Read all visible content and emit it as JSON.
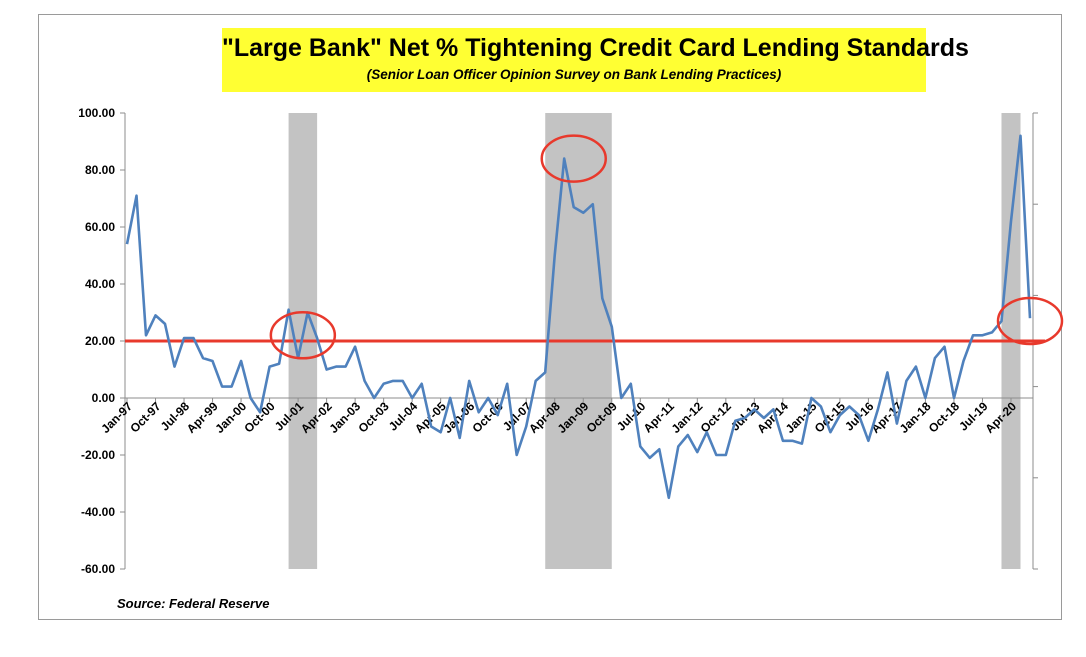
{
  "chart_data": {
    "type": "line",
    "title": "\"Large Bank\" Net % Tightening Credit Card Lending Standards",
    "subtitle": "(Senior Loan Officer Opinion Survey on Bank Lending Practices)",
    "source": "Source: Federal Reserve",
    "ylim": [
      -60,
      100
    ],
    "y_ticks": [
      "100.00",
      "80.00",
      "60.00",
      "40.00",
      "20.00",
      "0.00",
      "-20.00",
      "-40.00",
      "-60.00"
    ],
    "x_tick_labels": [
      "Jan-97",
      "Oct-97",
      "Jul-98",
      "Apr-99",
      "Jan-00",
      "Oct-00",
      "Jul-01",
      "Apr-02",
      "Jan-03",
      "Oct-03",
      "Jul-04",
      "Apr-05",
      "Jan-06",
      "Oct-06",
      "Jul-07",
      "Apr-08",
      "Jan-09",
      "Oct-09",
      "Jul-10",
      "Apr-11",
      "Jan-12",
      "Oct-12",
      "Jul-13",
      "Apr-14",
      "Jan-15",
      "Oct-15",
      "Jul-16",
      "Apr-17",
      "Jan-18",
      "Oct-18",
      "Jul-19",
      "Apr-20"
    ],
    "reference_line": {
      "y": 20,
      "color": "#e8392c"
    },
    "recession_shading": [
      {
        "start_index": 17,
        "end_index": 20
      },
      {
        "start_index": 44,
        "end_index": 51
      },
      {
        "start_index": 92,
        "end_index": 94
      }
    ],
    "highlight_circles": [
      {
        "index": 18.5,
        "y": 22
      },
      {
        "index": 47,
        "y": 84
      },
      {
        "index": 95,
        "y": 27
      }
    ],
    "series": [
      {
        "color": "#4f81bd",
        "start": "Jan-97",
        "frequency": "quarterly",
        "values": [
          54,
          71,
          22,
          29,
          26,
          11,
          21,
          21,
          14,
          13,
          4,
          4,
          13,
          0,
          -5,
          11,
          12,
          31,
          14,
          30,
          21,
          10,
          11,
          11,
          18,
          6,
          0,
          5,
          6,
          6,
          0,
          5,
          -10,
          -12,
          0,
          -14,
          6,
          -5,
          0,
          -6,
          5,
          -20,
          -10,
          6,
          9,
          50,
          84,
          67,
          65,
          68,
          35,
          25,
          0,
          5,
          -17,
          -21,
          -18,
          -35,
          -17,
          -13,
          -19,
          -12,
          -20,
          -20,
          -8,
          -7,
          -4,
          -7,
          -4,
          -15,
          -15,
          -16,
          0,
          -3,
          -12,
          -6,
          -3,
          -6,
          -15,
          -4,
          9,
          -9,
          6,
          11,
          0,
          14,
          18,
          0,
          13,
          22,
          22,
          23,
          27,
          62,
          92,
          28
        ]
      }
    ]
  }
}
